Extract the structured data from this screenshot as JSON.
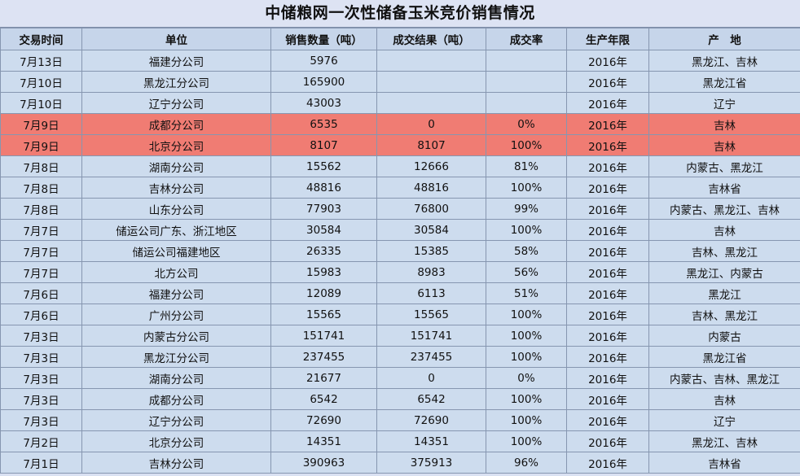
{
  "title": "中储粮网一次性储备玉米竞价销售情况",
  "colors": {
    "header_bg": "#c6d5ea",
    "row_bg": "#cddcee",
    "highlight_bg": "#f07c73",
    "grid_line": "#8696b0"
  },
  "columns": [
    "交易时间",
    "单位",
    "销售数量（吨）",
    "成交结果（吨）",
    "成交率",
    "生产年限",
    "产　地"
  ],
  "rows": [
    {
      "date": "7月13日",
      "unit": "福建分公司",
      "qty": "5976",
      "result": "",
      "rate": "",
      "year": "2016年",
      "origin": "黑龙江、吉林",
      "highlight": false
    },
    {
      "date": "7月10日",
      "unit": "黑龙江分公司",
      "qty": "165900",
      "result": "",
      "rate": "",
      "year": "2016年",
      "origin": "黑龙江省",
      "highlight": false
    },
    {
      "date": "7月10日",
      "unit": "辽宁分公司",
      "qty": "43003",
      "result": "",
      "rate": "",
      "year": "2016年",
      "origin": "辽宁",
      "highlight": false
    },
    {
      "date": "7月9日",
      "unit": "成都分公司",
      "qty": "6535",
      "result": "0",
      "rate": "0%",
      "year": "2016年",
      "origin": "吉林",
      "highlight": true
    },
    {
      "date": "7月9日",
      "unit": "北京分公司",
      "qty": "8107",
      "result": "8107",
      "rate": "100%",
      "year": "2016年",
      "origin": "吉林",
      "highlight": true
    },
    {
      "date": "7月8日",
      "unit": "湖南分公司",
      "qty": "15562",
      "result": "12666",
      "rate": "81%",
      "year": "2016年",
      "origin": "内蒙古、黑龙江",
      "highlight": false
    },
    {
      "date": "7月8日",
      "unit": "吉林分公司",
      "qty": "48816",
      "result": "48816",
      "rate": "100%",
      "year": "2016年",
      "origin": "吉林省",
      "highlight": false
    },
    {
      "date": "7月8日",
      "unit": "山东分公司",
      "qty": "77903",
      "result": "76800",
      "rate": "99%",
      "year": "2016年",
      "origin": "内蒙古、黑龙江、吉林",
      "highlight": false
    },
    {
      "date": "7月7日",
      "unit": "储运公司广东、浙江地区",
      "qty": "30584",
      "result": "30584",
      "rate": "100%",
      "year": "2016年",
      "origin": "吉林",
      "highlight": false
    },
    {
      "date": "7月7日",
      "unit": "储运公司福建地区",
      "qty": "26335",
      "result": "15385",
      "rate": "58%",
      "year": "2016年",
      "origin": "吉林、黑龙江",
      "highlight": false
    },
    {
      "date": "7月7日",
      "unit": "北方公司",
      "qty": "15983",
      "result": "8983",
      "rate": "56%",
      "year": "2016年",
      "origin": "黑龙江、内蒙古",
      "highlight": false
    },
    {
      "date": "7月6日",
      "unit": "福建分公司",
      "qty": "12089",
      "result": "6113",
      "rate": "51%",
      "year": "2016年",
      "origin": "黑龙江",
      "highlight": false
    },
    {
      "date": "7月6日",
      "unit": "广州分公司",
      "qty": "15565",
      "result": "15565",
      "rate": "100%",
      "year": "2016年",
      "origin": "吉林、黑龙江",
      "highlight": false
    },
    {
      "date": "7月3日",
      "unit": "内蒙古分公司",
      "qty": "151741",
      "result": "151741",
      "rate": "100%",
      "year": "2016年",
      "origin": "内蒙古",
      "highlight": false
    },
    {
      "date": "7月3日",
      "unit": "黑龙江分公司",
      "qty": "237455",
      "result": "237455",
      "rate": "100%",
      "year": "2016年",
      "origin": "黑龙江省",
      "highlight": false
    },
    {
      "date": "7月3日",
      "unit": "湖南分公司",
      "qty": "21677",
      "result": "0",
      "rate": "0%",
      "year": "2016年",
      "origin": "内蒙古、吉林、黑龙江",
      "highlight": false
    },
    {
      "date": "7月3日",
      "unit": "成都分公司",
      "qty": "6542",
      "result": "6542",
      "rate": "100%",
      "year": "2016年",
      "origin": "吉林",
      "highlight": false
    },
    {
      "date": "7月3日",
      "unit": "辽宁分公司",
      "qty": "72690",
      "result": "72690",
      "rate": "100%",
      "year": "2016年",
      "origin": "辽宁",
      "highlight": false
    },
    {
      "date": "7月2日",
      "unit": "北京分公司",
      "qty": "14351",
      "result": "14351",
      "rate": "100%",
      "year": "2016年",
      "origin": "黑龙江、吉林",
      "highlight": false
    },
    {
      "date": "7月1日",
      "unit": "吉林分公司",
      "qty": "390963",
      "result": "375913",
      "rate": "96%",
      "year": "2016年",
      "origin": "吉林省",
      "highlight": false
    }
  ]
}
